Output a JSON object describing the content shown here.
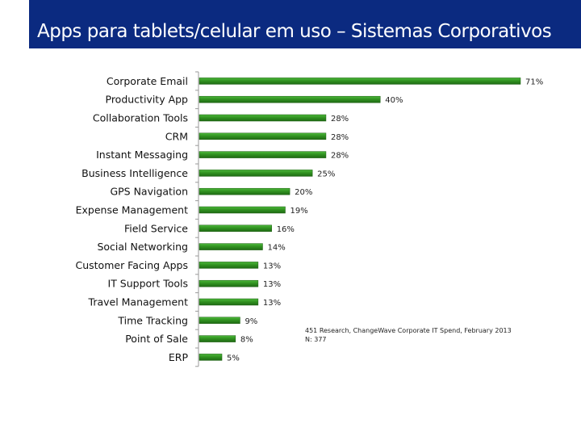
{
  "slide": {
    "title": "Apps para tablets/celular em uso – Sistemas Corporativos"
  },
  "source": {
    "line1": "451 Research, ChangeWave Corporate IT Spend, February 2013",
    "line2": "N: 377"
  },
  "colors": {
    "title_bg": "#0b2a80",
    "bar": "#2f8f1f",
    "bar_highlight": "#4cb83a",
    "axis": "#9a9a9a"
  },
  "chart_data": {
    "type": "bar",
    "orientation": "horizontal",
    "title": "Apps para tablets/celular em uso – Sistemas Corporativos",
    "categories": [
      "Corporate Email",
      "Productivity App",
      "Collaboration Tools",
      "CRM",
      "Instant Messaging",
      "Business Intelligence",
      "GPS Navigation",
      "Expense Management",
      "Field Service",
      "Social Networking",
      "Customer Facing Apps",
      "IT Support Tools",
      "Travel Management",
      "Time Tracking",
      "Point of Sale",
      "ERP"
    ],
    "values": [
      71,
      40,
      28,
      28,
      28,
      25,
      20,
      19,
      16,
      14,
      13,
      13,
      13,
      9,
      8,
      5
    ],
    "value_labels": [
      "71%",
      "40%",
      "28%",
      "28%",
      "28%",
      "25%",
      "20%",
      "19%",
      "16%",
      "14%",
      "13%",
      "13%",
      "13%",
      "9%",
      "8%",
      "5%"
    ],
    "xlim": [
      0,
      71
    ],
    "unit": "%",
    "grid": false
  }
}
